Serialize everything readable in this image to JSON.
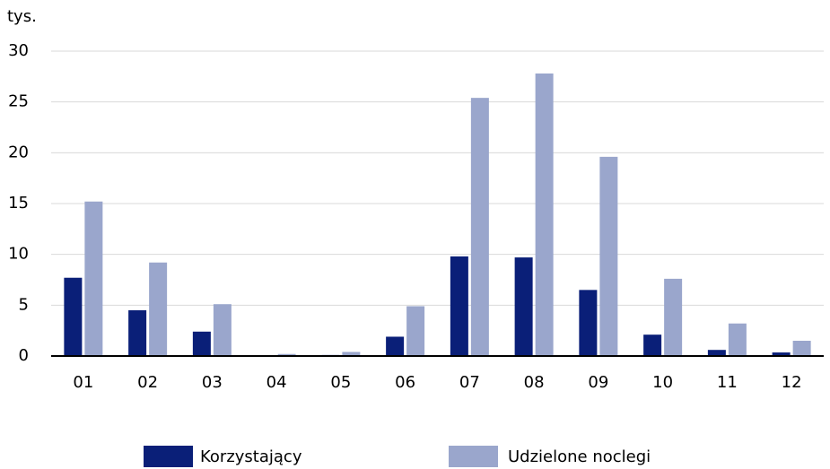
{
  "chart_data": {
    "type": "bar",
    "y_axis_label": "tys.",
    "categories": [
      "01",
      "02",
      "03",
      "04",
      "05",
      "06",
      "07",
      "08",
      "09",
      "10",
      "11",
      "12"
    ],
    "series": [
      {
        "name": "Korzystający",
        "color": "#0a1f78",
        "values": [
          7.7,
          4.5,
          2.4,
          0.05,
          0.1,
          1.9,
          9.8,
          9.7,
          6.5,
          2.1,
          0.6,
          0.35
        ]
      },
      {
        "name": "Udzielone noclegi",
        "color": "#9aa6cc",
        "values": [
          15.2,
          9.2,
          5.1,
          0.2,
          0.4,
          4.9,
          25.4,
          27.8,
          19.6,
          7.6,
          3.2,
          1.5
        ]
      }
    ],
    "ylim": [
      0,
      30
    ],
    "yticks": [
      0,
      5,
      10,
      15,
      20,
      25,
      30
    ],
    "grid": true
  }
}
